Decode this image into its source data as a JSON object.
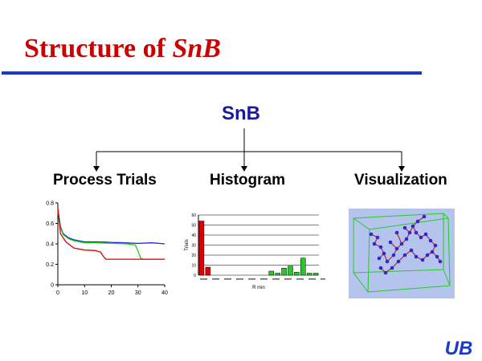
{
  "title": {
    "prefix": "Structure of ",
    "emphasis": "SnB"
  },
  "tree": {
    "root": "SnB",
    "children": [
      "Process Trials",
      "Histogram",
      "Visualization"
    ]
  },
  "charts": [
    {
      "type": "line",
      "title": "",
      "xlabel": "",
      "ylabel": "",
      "xlim": [
        0,
        40
      ],
      "ylim": [
        0,
        0.8
      ],
      "x_ticks": [
        "0",
        "10",
        "20",
        "30",
        "40"
      ],
      "y_ticks": [
        "0",
        "0.2",
        "0.4",
        "0.6",
        "0.8"
      ],
      "series": [
        {
          "color": "#2222cc",
          "points": [
            [
              0,
              0.74
            ],
            [
              1,
              0.57
            ],
            [
              2,
              0.5
            ],
            [
              4,
              0.46
            ],
            [
              6,
              0.44
            ],
            [
              10,
              0.42
            ],
            [
              15,
              0.42
            ],
            [
              20,
              0.415
            ],
            [
              25,
              0.41
            ],
            [
              30,
              0.405
            ],
            [
              35,
              0.41
            ],
            [
              38,
              0.405
            ],
            [
              40,
              0.4
            ]
          ]
        },
        {
          "color": "#22cc22",
          "points": [
            [
              0,
              0.72
            ],
            [
              1,
              0.56
            ],
            [
              2,
              0.49
            ],
            [
              4,
              0.45
            ],
            [
              6,
              0.43
            ],
            [
              10,
              0.41
            ],
            [
              15,
              0.41
            ],
            [
              20,
              0.405
            ],
            [
              26,
              0.4
            ],
            [
              29,
              0.39
            ],
            [
              30,
              0.33
            ],
            [
              31,
              0.26
            ],
            [
              32,
              0.25
            ],
            [
              40,
              0.25
            ]
          ]
        },
        {
          "color": "#dd0000",
          "points": [
            [
              0,
              0.75
            ],
            [
              1,
              0.5
            ],
            [
              3,
              0.42
            ],
            [
              6,
              0.36
            ],
            [
              10,
              0.34
            ],
            [
              14,
              0.335
            ],
            [
              16,
              0.32
            ],
            [
              17,
              0.28
            ],
            [
              18,
              0.25
            ],
            [
              20,
              0.25
            ],
            [
              30,
              0.25
            ],
            [
              40,
              0.25
            ]
          ]
        }
      ]
    },
    {
      "type": "bar",
      "title": "",
      "xlabel": "R min",
      "ylabel": "Trials",
      "ylim": [
        0,
        60
      ],
      "y_ticks": [
        "0",
        "10",
        "20",
        "30",
        "40",
        "50",
        "60"
      ],
      "bars": [
        {
          "value": 54,
          "color": "#dd0000"
        },
        {
          "value": 8,
          "color": "#dd0000"
        },
        {
          "value": 0,
          "color": "#dd0000"
        },
        {
          "value": 0,
          "color": "#dd0000"
        },
        {
          "value": 0,
          "color": "#dd0000"
        },
        {
          "value": 0,
          "color": "#dd0000"
        },
        {
          "value": 0,
          "color": "#dd0000"
        },
        {
          "value": 0,
          "color": "#dd0000"
        },
        {
          "value": 0,
          "color": "#dd0000"
        },
        {
          "value": 0,
          "color": "#dd0000"
        },
        {
          "value": 0,
          "color": "#22cc22"
        },
        {
          "value": 4,
          "color": "#22cc22"
        },
        {
          "value": 2,
          "color": "#22cc22"
        },
        {
          "value": 7,
          "color": "#22cc22"
        },
        {
          "value": 9,
          "color": "#22cc22"
        },
        {
          "value": 3,
          "color": "#22cc22"
        },
        {
          "value": 17,
          "color": "#22cc22"
        },
        {
          "value": 2,
          "color": "#22cc22"
        },
        {
          "value": 2,
          "color": "#22cc22"
        }
      ]
    }
  ],
  "visualization": {
    "background": "#b4c4ec",
    "box_color": "#22cc22",
    "atom_color": "#2a2ad0",
    "bond_color": "#d02020"
  },
  "logo": {
    "text": "UB",
    "color": "#1a3acc"
  }
}
